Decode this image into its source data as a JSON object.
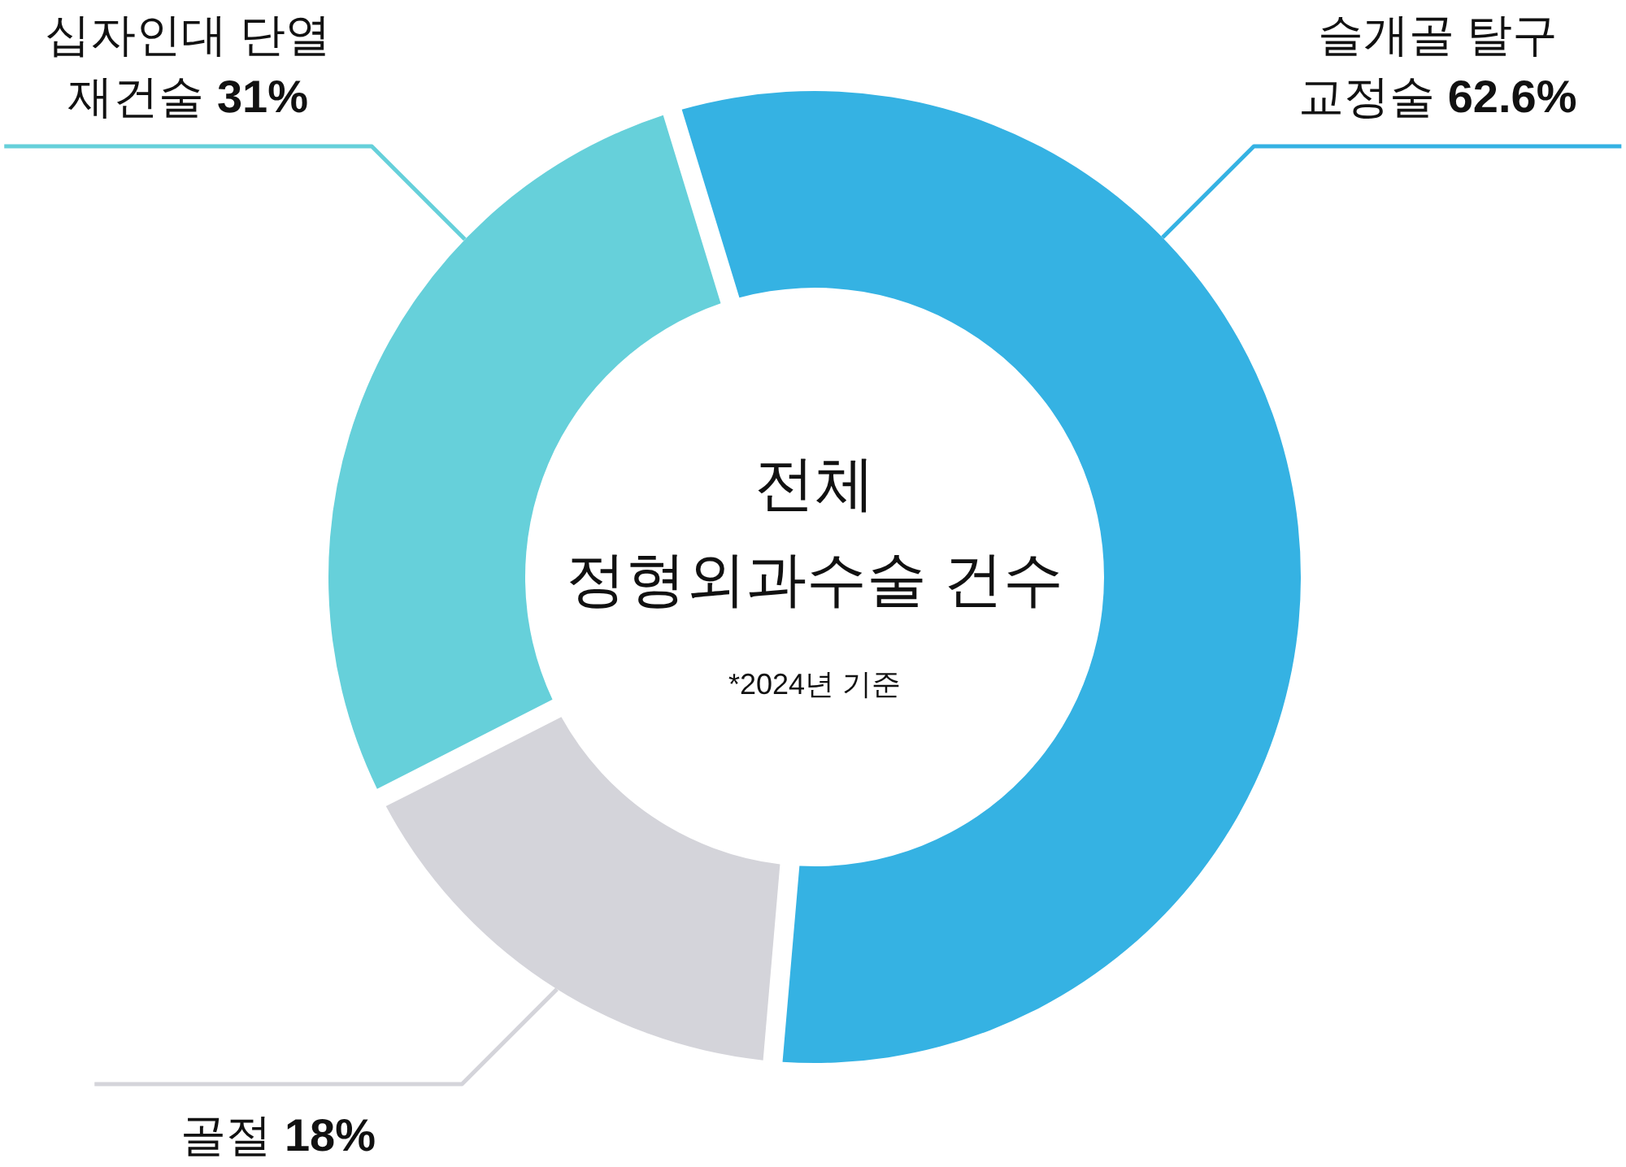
{
  "chart_data": {
    "type": "donut",
    "title": "전체\n정형외과수술 건수",
    "annotations": [
      "*2024년 기준"
    ],
    "categories": [
      "슬개골 탈구 교정술",
      "골절",
      "십자인대 단열 재건술"
    ],
    "values": [
      62.6,
      18,
      31
    ],
    "colors": [
      "#35b2e3",
      "#d4d4da",
      "#66d0da"
    ],
    "value_labels": [
      "62.6%",
      "18%",
      "31%"
    ]
  }
}
